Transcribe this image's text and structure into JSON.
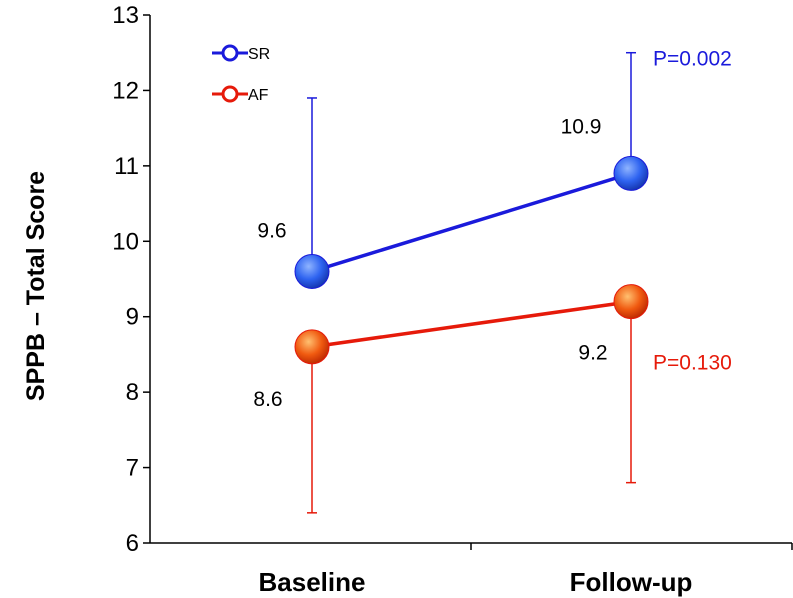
{
  "chart_data": {
    "type": "line",
    "categories": [
      "Baseline",
      "Follow-up"
    ],
    "ylabel": "SPPB – Total Score",
    "xlabel": "",
    "ylim": [
      6,
      13
    ],
    "yticks": [
      6,
      7,
      8,
      9,
      10,
      11,
      12,
      13
    ],
    "ytick_labels": [
      "6",
      "7",
      "8",
      "9",
      "10",
      "11",
      "12",
      "13"
    ],
    "grid": false,
    "legend_position": "top-left",
    "series": [
      {
        "name": "SR",
        "color": "#1a1adb",
        "values": [
          9.6,
          10.9
        ],
        "value_labels": [
          "9.6",
          "10.9"
        ],
        "error_upper": [
          11.9,
          12.5
        ],
        "p_value": "P=0.002"
      },
      {
        "name": "AF",
        "color": "#e61a0a",
        "values": [
          8.6,
          9.2
        ],
        "value_labels": [
          "8.6",
          "9.2"
        ],
        "error_lower": [
          6.4,
          6.8
        ],
        "p_value": "P=0.130"
      }
    ]
  }
}
